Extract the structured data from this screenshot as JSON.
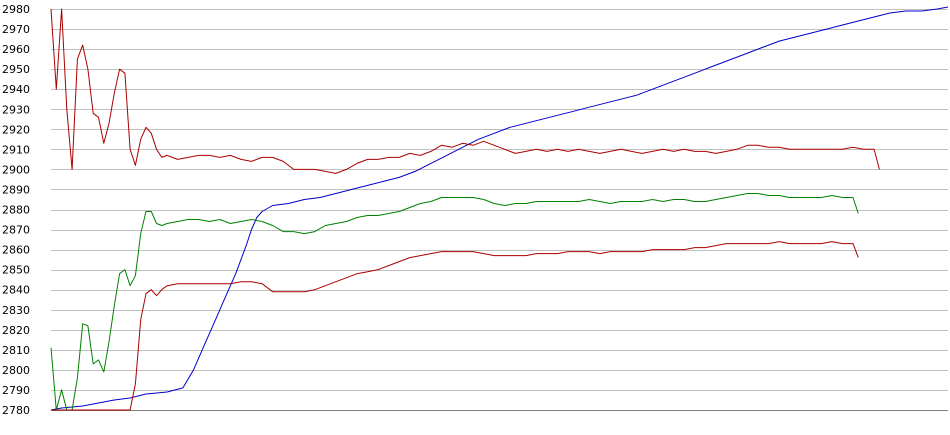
{
  "chart_data": {
    "type": "line",
    "title": "",
    "xlabel": "",
    "ylabel": "",
    "ylim": [
      2780,
      2980
    ],
    "y_ticks": [
      2780,
      2790,
      2800,
      2810,
      2820,
      2830,
      2840,
      2850,
      2860,
      2870,
      2880,
      2890,
      2900,
      2910,
      2920,
      2930,
      2940,
      2950,
      2960,
      2970,
      2980
    ],
    "grid": true,
    "x_tick_labels": false,
    "x_count": 140,
    "series": [
      {
        "color": "#0000cc",
        "points": [
          [
            0,
            2780
          ],
          [
            2,
            2781
          ],
          [
            6,
            2782
          ],
          [
            12,
            2785
          ],
          [
            15,
            2786
          ],
          [
            18,
            2788
          ],
          [
            22,
            2789
          ],
          [
            25,
            2791
          ],
          [
            27,
            2800
          ],
          [
            29,
            2812
          ],
          [
            31,
            2824
          ],
          [
            33,
            2836
          ],
          [
            35,
            2848
          ],
          [
            37,
            2862
          ],
          [
            38,
            2870
          ],
          [
            39,
            2876
          ],
          [
            40,
            2879
          ],
          [
            42,
            2882
          ],
          [
            45,
            2883
          ],
          [
            48,
            2885
          ],
          [
            51,
            2886
          ],
          [
            54,
            2888
          ],
          [
            57,
            2890
          ],
          [
            60,
            2892
          ],
          [
            63,
            2894
          ],
          [
            66,
            2896
          ],
          [
            69,
            2899
          ],
          [
            72,
            2903
          ],
          [
            75,
            2907
          ],
          [
            78,
            2911
          ],
          [
            81,
            2915
          ],
          [
            84,
            2918
          ],
          [
            87,
            2921
          ],
          [
            90,
            2923
          ],
          [
            93,
            2925
          ],
          [
            96,
            2927
          ],
          [
            99,
            2929
          ],
          [
            102,
            2931
          ],
          [
            105,
            2933
          ],
          [
            108,
            2935
          ],
          [
            111,
            2937
          ],
          [
            114,
            2940
          ],
          [
            117,
            2943
          ],
          [
            120,
            2946
          ],
          [
            123,
            2949
          ],
          [
            126,
            2952
          ],
          [
            129,
            2955
          ],
          [
            132,
            2958
          ],
          [
            135,
            2961
          ],
          [
            138,
            2964
          ],
          [
            141,
            2966
          ],
          [
            144,
            2968
          ],
          [
            147,
            2970
          ],
          [
            150,
            2972
          ],
          [
            153,
            2974
          ],
          [
            156,
            2976
          ],
          [
            159,
            2978
          ],
          [
            162,
            2979
          ],
          [
            165,
            2979
          ],
          [
            168,
            2980
          ],
          [
            170,
            2981
          ]
        ]
      },
      {
        "color": "#aa0000",
        "points": [
          [
            0,
            2980
          ],
          [
            1,
            2940
          ],
          [
            2,
            2980
          ],
          [
            3,
            2930
          ],
          [
            4,
            2900
          ],
          [
            5,
            2955
          ],
          [
            6,
            2962
          ],
          [
            7,
            2950
          ],
          [
            8,
            2928
          ],
          [
            9,
            2926
          ],
          [
            10,
            2913
          ],
          [
            11,
            2923
          ],
          [
            12,
            2938
          ],
          [
            13,
            2950
          ],
          [
            14,
            2948
          ],
          [
            15,
            2910
          ],
          [
            16,
            2902
          ],
          [
            17,
            2915
          ],
          [
            18,
            2921
          ],
          [
            19,
            2918
          ],
          [
            20,
            2910
          ],
          [
            21,
            2906
          ],
          [
            22,
            2907
          ],
          [
            24,
            2905
          ],
          [
            26,
            2906
          ],
          [
            28,
            2907
          ],
          [
            30,
            2907
          ],
          [
            32,
            2906
          ],
          [
            34,
            2907
          ],
          [
            36,
            2905
          ],
          [
            38,
            2904
          ],
          [
            40,
            2906
          ],
          [
            42,
            2906
          ],
          [
            44,
            2904
          ],
          [
            46,
            2900
          ],
          [
            48,
            2900
          ],
          [
            50,
            2900
          ],
          [
            52,
            2899
          ],
          [
            54,
            2898
          ],
          [
            56,
            2900
          ],
          [
            58,
            2903
          ],
          [
            60,
            2905
          ],
          [
            62,
            2905
          ],
          [
            64,
            2906
          ],
          [
            66,
            2906
          ],
          [
            68,
            2908
          ],
          [
            70,
            2907
          ],
          [
            72,
            2909
          ],
          [
            74,
            2912
          ],
          [
            76,
            2911
          ],
          [
            78,
            2913
          ],
          [
            80,
            2912
          ],
          [
            82,
            2914
          ],
          [
            84,
            2912
          ],
          [
            86,
            2910
          ],
          [
            88,
            2908
          ],
          [
            90,
            2909
          ],
          [
            92,
            2910
          ],
          [
            94,
            2909
          ],
          [
            96,
            2910
          ],
          [
            98,
            2909
          ],
          [
            100,
            2910
          ],
          [
            102,
            2909
          ],
          [
            104,
            2908
          ],
          [
            106,
            2909
          ],
          [
            108,
            2910
          ],
          [
            110,
            2909
          ],
          [
            112,
            2908
          ],
          [
            114,
            2909
          ],
          [
            116,
            2910
          ],
          [
            118,
            2909
          ],
          [
            120,
            2910
          ],
          [
            122,
            2909
          ],
          [
            124,
            2909
          ],
          [
            126,
            2908
          ],
          [
            128,
            2909
          ],
          [
            130,
            2910
          ],
          [
            132,
            2912
          ],
          [
            134,
            2912
          ],
          [
            136,
            2911
          ],
          [
            138,
            2911
          ],
          [
            140,
            2910
          ],
          [
            142,
            2910
          ],
          [
            144,
            2910
          ],
          [
            146,
            2910
          ],
          [
            148,
            2910
          ],
          [
            150,
            2910
          ],
          [
            152,
            2911
          ],
          [
            154,
            2910
          ],
          [
            156,
            2910
          ],
          [
            157,
            2900
          ]
        ]
      },
      {
        "color": "#008000",
        "points": [
          [
            0,
            2811
          ],
          [
            1,
            2780
          ],
          [
            2,
            2790
          ],
          [
            3,
            2780
          ],
          [
            4,
            2780
          ],
          [
            5,
            2796
          ],
          [
            6,
            2823
          ],
          [
            7,
            2822
          ],
          [
            8,
            2803
          ],
          [
            9,
            2805
          ],
          [
            10,
            2799
          ],
          [
            11,
            2814
          ],
          [
            12,
            2832
          ],
          [
            13,
            2848
          ],
          [
            14,
            2850
          ],
          [
            15,
            2842
          ],
          [
            16,
            2847
          ],
          [
            17,
            2868
          ],
          [
            18,
            2879
          ],
          [
            19,
            2879
          ],
          [
            20,
            2873
          ],
          [
            21,
            2872
          ],
          [
            22,
            2873
          ],
          [
            24,
            2874
          ],
          [
            26,
            2875
          ],
          [
            28,
            2875
          ],
          [
            30,
            2874
          ],
          [
            32,
            2875
          ],
          [
            34,
            2873
          ],
          [
            36,
            2874
          ],
          [
            38,
            2875
          ],
          [
            40,
            2874
          ],
          [
            42,
            2872
          ],
          [
            44,
            2869
          ],
          [
            46,
            2869
          ],
          [
            48,
            2868
          ],
          [
            50,
            2869
          ],
          [
            52,
            2872
          ],
          [
            54,
            2873
          ],
          [
            56,
            2874
          ],
          [
            58,
            2876
          ],
          [
            60,
            2877
          ],
          [
            62,
            2877
          ],
          [
            64,
            2878
          ],
          [
            66,
            2879
          ],
          [
            68,
            2881
          ],
          [
            70,
            2883
          ],
          [
            72,
            2884
          ],
          [
            74,
            2886
          ],
          [
            76,
            2886
          ],
          [
            78,
            2886
          ],
          [
            80,
            2886
          ],
          [
            82,
            2885
          ],
          [
            84,
            2883
          ],
          [
            86,
            2882
          ],
          [
            88,
            2883
          ],
          [
            90,
            2883
          ],
          [
            92,
            2884
          ],
          [
            94,
            2884
          ],
          [
            96,
            2884
          ],
          [
            98,
            2884
          ],
          [
            100,
            2884
          ],
          [
            102,
            2885
          ],
          [
            104,
            2884
          ],
          [
            106,
            2883
          ],
          [
            108,
            2884
          ],
          [
            110,
            2884
          ],
          [
            112,
            2884
          ],
          [
            114,
            2885
          ],
          [
            116,
            2884
          ],
          [
            118,
            2885
          ],
          [
            120,
            2885
          ],
          [
            122,
            2884
          ],
          [
            124,
            2884
          ],
          [
            126,
            2885
          ],
          [
            128,
            2886
          ],
          [
            130,
            2887
          ],
          [
            132,
            2888
          ],
          [
            134,
            2888
          ],
          [
            136,
            2887
          ],
          [
            138,
            2887
          ],
          [
            140,
            2886
          ],
          [
            142,
            2886
          ],
          [
            144,
            2886
          ],
          [
            146,
            2886
          ],
          [
            148,
            2887
          ],
          [
            150,
            2886
          ],
          [
            152,
            2886
          ],
          [
            153,
            2878
          ]
        ]
      },
      {
        "color": "#aa0000",
        "points": [
          [
            0,
            2780
          ],
          [
            2,
            2780
          ],
          [
            4,
            2780
          ],
          [
            6,
            2780
          ],
          [
            8,
            2780
          ],
          [
            10,
            2780
          ],
          [
            12,
            2780
          ],
          [
            14,
            2780
          ],
          [
            15,
            2780
          ],
          [
            16,
            2793
          ],
          [
            17,
            2825
          ],
          [
            18,
            2838
          ],
          [
            19,
            2840
          ],
          [
            20,
            2837
          ],
          [
            21,
            2840
          ],
          [
            22,
            2842
          ],
          [
            24,
            2843
          ],
          [
            26,
            2843
          ],
          [
            28,
            2843
          ],
          [
            30,
            2843
          ],
          [
            32,
            2843
          ],
          [
            34,
            2843
          ],
          [
            36,
            2844
          ],
          [
            38,
            2844
          ],
          [
            40,
            2843
          ],
          [
            42,
            2839
          ],
          [
            44,
            2839
          ],
          [
            46,
            2839
          ],
          [
            48,
            2839
          ],
          [
            50,
            2840
          ],
          [
            52,
            2842
          ],
          [
            54,
            2844
          ],
          [
            56,
            2846
          ],
          [
            58,
            2848
          ],
          [
            60,
            2849
          ],
          [
            62,
            2850
          ],
          [
            64,
            2852
          ],
          [
            66,
            2854
          ],
          [
            68,
            2856
          ],
          [
            70,
            2857
          ],
          [
            72,
            2858
          ],
          [
            74,
            2859
          ],
          [
            76,
            2859
          ],
          [
            78,
            2859
          ],
          [
            80,
            2859
          ],
          [
            82,
            2858
          ],
          [
            84,
            2857
          ],
          [
            86,
            2857
          ],
          [
            88,
            2857
          ],
          [
            90,
            2857
          ],
          [
            92,
            2858
          ],
          [
            94,
            2858
          ],
          [
            96,
            2858
          ],
          [
            98,
            2859
          ],
          [
            100,
            2859
          ],
          [
            102,
            2859
          ],
          [
            104,
            2858
          ],
          [
            106,
            2859
          ],
          [
            108,
            2859
          ],
          [
            110,
            2859
          ],
          [
            112,
            2859
          ],
          [
            114,
            2860
          ],
          [
            116,
            2860
          ],
          [
            118,
            2860
          ],
          [
            120,
            2860
          ],
          [
            122,
            2861
          ],
          [
            124,
            2861
          ],
          [
            126,
            2862
          ],
          [
            128,
            2863
          ],
          [
            130,
            2863
          ],
          [
            132,
            2863
          ],
          [
            134,
            2863
          ],
          [
            136,
            2863
          ],
          [
            138,
            2864
          ],
          [
            140,
            2863
          ],
          [
            142,
            2863
          ],
          [
            144,
            2863
          ],
          [
            146,
            2863
          ],
          [
            148,
            2864
          ],
          [
            150,
            2863
          ],
          [
            152,
            2863
          ],
          [
            153,
            2856
          ]
        ]
      }
    ]
  }
}
